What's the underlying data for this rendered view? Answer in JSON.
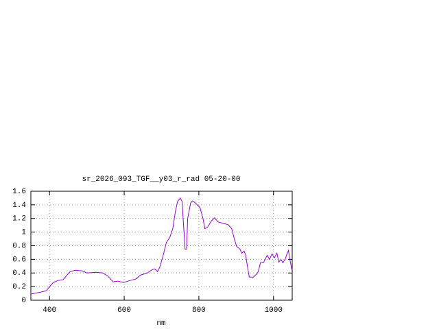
{
  "chart_data": {
    "type": "line",
    "title": "sr_2026_093_TGF__y03_r_rad 05-20-00",
    "x_label": "nm",
    "x": [
      350,
      377,
      392,
      400,
      410,
      423,
      436,
      447,
      455,
      469,
      488,
      500,
      524,
      543,
      557,
      570,
      583,
      598,
      616,
      631,
      644,
      662,
      675,
      682,
      689,
      695,
      704,
      713,
      722,
      730,
      737,
      743,
      750,
      755,
      759,
      763,
      767,
      770,
      778,
      783,
      792,
      803,
      811,
      816,
      823,
      833,
      842,
      851,
      864,
      878,
      888,
      895,
      901,
      910,
      915,
      921,
      925,
      930,
      935,
      946,
      954,
      959,
      965,
      974,
      983,
      989,
      996,
      1002,
      1009,
      1014,
      1020,
      1025,
      1031,
      1036,
      1040,
      1043,
      1049
    ],
    "series": [
      {
        "color": "#9400d3",
        "values": [
          0.09,
          0.12,
          0.14,
          0.2,
          0.26,
          0.29,
          0.3,
          0.37,
          0.42,
          0.44,
          0.43,
          0.4,
          0.41,
          0.4,
          0.35,
          0.27,
          0.28,
          0.26,
          0.29,
          0.31,
          0.37,
          0.4,
          0.45,
          0.46,
          0.42,
          0.48,
          0.65,
          0.85,
          0.92,
          1.05,
          1.3,
          1.45,
          1.5,
          1.45,
          1.1,
          0.75,
          0.75,
          1.2,
          1.43,
          1.46,
          1.42,
          1.36,
          1.2,
          1.05,
          1.07,
          1.16,
          1.21,
          1.15,
          1.13,
          1.11,
          1.05,
          0.9,
          0.79,
          0.75,
          0.69,
          0.72,
          0.67,
          0.5,
          0.34,
          0.34,
          0.38,
          0.42,
          0.55,
          0.56,
          0.66,
          0.6,
          0.68,
          0.62,
          0.69,
          0.56,
          0.6,
          0.55,
          0.6,
          0.68,
          0.73,
          0.62,
          0.45
        ]
      }
    ],
    "xlim": [
      350,
      1050
    ],
    "xticks": [
      400,
      600,
      800,
      1000
    ],
    "ylim": [
      0,
      1.6
    ],
    "yticks": [
      0,
      0.2,
      0.4,
      0.6,
      0.8,
      1,
      1.2,
      1.4,
      1.6
    ],
    "grid": true
  }
}
